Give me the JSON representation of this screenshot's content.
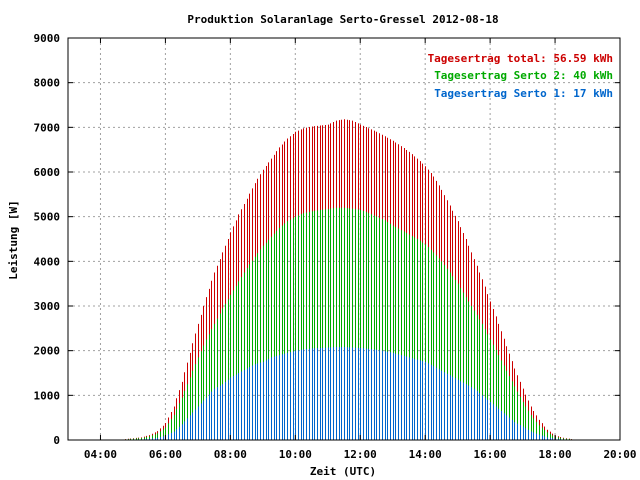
{
  "chart_data": {
    "type": "bar",
    "title": "Produktion Solaranlage Serto-Gressel 2012-08-18",
    "xlabel": "Zeit (UTC)",
    "ylabel": "Leistung [W]",
    "xlim": [
      "03:00",
      "20:00"
    ],
    "ylim": [
      0,
      9000
    ],
    "grid": true,
    "legend_position": "top-right",
    "x_ticks": [
      "04:00",
      "06:00",
      "08:00",
      "10:00",
      "12:00",
      "14:00",
      "16:00",
      "18:00",
      "20:00"
    ],
    "y_ticks": [
      "0",
      "1000",
      "2000",
      "3000",
      "4000",
      "5000",
      "6000",
      "7000",
      "8000",
      "9000"
    ],
    "bar_interval_minutes": 5,
    "legend": [
      {
        "text": "Tagesertrag total: 56.59 kWh",
        "color": "#cc0000"
      },
      {
        "text": "Tagesertrag Serto 2: 40 kWh",
        "color": "#00aa00"
      },
      {
        "text": "Tagesertrag Serto 1: 17 kWh",
        "color": "#0066cc"
      }
    ],
    "series": [
      {
        "color": "#cc0000",
        "points": [
          [
            "04:45",
            20
          ],
          [
            "05:00",
            40
          ],
          [
            "05:15",
            60
          ],
          [
            "05:30",
            110
          ],
          [
            "05:45",
            200
          ],
          [
            "06:00",
            380
          ],
          [
            "06:15",
            750
          ],
          [
            "06:30",
            1300
          ],
          [
            "06:45",
            1950
          ],
          [
            "07:00",
            2600
          ],
          [
            "07:15",
            3200
          ],
          [
            "07:30",
            3750
          ],
          [
            "07:45",
            4200
          ],
          [
            "08:00",
            4650
          ],
          [
            "08:15",
            5050
          ],
          [
            "08:30",
            5400
          ],
          [
            "08:45",
            5750
          ],
          [
            "09:00",
            6050
          ],
          [
            "09:15",
            6300
          ],
          [
            "09:30",
            6550
          ],
          [
            "09:45",
            6750
          ],
          [
            "10:00",
            6900
          ],
          [
            "10:15",
            6980
          ],
          [
            "10:30",
            7020
          ],
          [
            "10:45",
            7040
          ],
          [
            "11:00",
            7060
          ],
          [
            "11:15",
            7150
          ],
          [
            "11:30",
            7180
          ],
          [
            "11:45",
            7150
          ],
          [
            "12:00",
            7060
          ],
          [
            "12:15",
            6980
          ],
          [
            "12:30",
            6900
          ],
          [
            "12:45",
            6800
          ],
          [
            "13:00",
            6700
          ],
          [
            "13:15",
            6580
          ],
          [
            "13:30",
            6450
          ],
          [
            "13:45",
            6300
          ],
          [
            "14:00",
            6130
          ],
          [
            "14:15",
            5900
          ],
          [
            "14:30",
            5600
          ],
          [
            "14:45",
            5250
          ],
          [
            "15:00",
            4900
          ],
          [
            "15:15",
            4500
          ],
          [
            "15:30",
            4050
          ],
          [
            "15:45",
            3600
          ],
          [
            "16:00",
            3100
          ],
          [
            "16:15",
            2600
          ],
          [
            "16:30",
            2100
          ],
          [
            "16:45",
            1600
          ],
          [
            "17:00",
            1150
          ],
          [
            "17:15",
            750
          ],
          [
            "17:30",
            450
          ],
          [
            "17:45",
            230
          ],
          [
            "18:00",
            100
          ],
          [
            "18:15",
            50
          ],
          [
            "18:30",
            20
          ]
        ]
      },
      {
        "color": "#00aa00",
        "points": [
          [
            "04:45",
            15
          ],
          [
            "05:00",
            30
          ],
          [
            "05:15",
            45
          ],
          [
            "05:30",
            80
          ],
          [
            "05:45",
            150
          ],
          [
            "06:00",
            280
          ],
          [
            "06:15",
            560
          ],
          [
            "06:30",
            950
          ],
          [
            "06:45",
            1400
          ],
          [
            "07:00",
            1850
          ],
          [
            "07:15",
            2250
          ],
          [
            "07:30",
            2600
          ],
          [
            "07:45",
            2950
          ],
          [
            "08:00",
            3250
          ],
          [
            "08:15",
            3550
          ],
          [
            "08:30",
            3850
          ],
          [
            "08:45",
            4100
          ],
          [
            "09:00",
            4350
          ],
          [
            "09:15",
            4550
          ],
          [
            "09:30",
            4750
          ],
          [
            "09:45",
            4900
          ],
          [
            "10:00",
            5000
          ],
          [
            "10:15",
            5080
          ],
          [
            "10:30",
            5120
          ],
          [
            "10:45",
            5150
          ],
          [
            "11:00",
            5170
          ],
          [
            "11:15",
            5200
          ],
          [
            "11:30",
            5200
          ],
          [
            "11:45",
            5180
          ],
          [
            "12:00",
            5150
          ],
          [
            "12:15",
            5080
          ],
          [
            "12:30",
            5000
          ],
          [
            "12:45",
            4920
          ],
          [
            "13:00",
            4800
          ],
          [
            "13:15",
            4700
          ],
          [
            "13:30",
            4600
          ],
          [
            "13:45",
            4500
          ],
          [
            "14:00",
            4380
          ],
          [
            "14:15",
            4200
          ],
          [
            "14:30",
            4000
          ],
          [
            "14:45",
            3750
          ],
          [
            "15:00",
            3500
          ],
          [
            "15:15",
            3200
          ],
          [
            "15:30",
            2900
          ],
          [
            "15:45",
            2600
          ],
          [
            "16:00",
            2250
          ],
          [
            "16:15",
            1900
          ],
          [
            "16:30",
            1550
          ],
          [
            "16:45",
            1200
          ],
          [
            "17:00",
            850
          ],
          [
            "17:15",
            560
          ],
          [
            "17:30",
            330
          ],
          [
            "17:45",
            170
          ],
          [
            "18:00",
            70
          ],
          [
            "18:15",
            35
          ],
          [
            "18:30",
            15
          ]
        ]
      },
      {
        "color": "#0066cc",
        "points": [
          [
            "04:45",
            5
          ],
          [
            "05:00",
            10
          ],
          [
            "05:15",
            15
          ],
          [
            "05:30",
            30
          ],
          [
            "05:45",
            50
          ],
          [
            "06:00",
            100
          ],
          [
            "06:15",
            190
          ],
          [
            "06:30",
            350
          ],
          [
            "06:45",
            550
          ],
          [
            "07:00",
            750
          ],
          [
            "07:15",
            950
          ],
          [
            "07:30",
            1150
          ],
          [
            "07:45",
            1250
          ],
          [
            "08:00",
            1400
          ],
          [
            "08:15",
            1500
          ],
          [
            "08:30",
            1600
          ],
          [
            "08:45",
            1700
          ],
          [
            "09:00",
            1750
          ],
          [
            "09:15",
            1850
          ],
          [
            "09:30",
            1900
          ],
          [
            "09:45",
            1950
          ],
          [
            "10:00",
            2000
          ],
          [
            "10:15",
            2030
          ],
          [
            "10:30",
            2050
          ],
          [
            "10:45",
            2060
          ],
          [
            "11:00",
            2070
          ],
          [
            "11:15",
            2080
          ],
          [
            "11:30",
            2080
          ],
          [
            "11:45",
            2070
          ],
          [
            "12:00",
            2060
          ],
          [
            "12:15",
            2040
          ],
          [
            "12:30",
            2020
          ],
          [
            "12:45",
            1990
          ],
          [
            "13:00",
            1950
          ],
          [
            "13:15",
            1900
          ],
          [
            "13:30",
            1850
          ],
          [
            "13:45",
            1800
          ],
          [
            "14:00",
            1750
          ],
          [
            "14:15",
            1650
          ],
          [
            "14:30",
            1550
          ],
          [
            "14:45",
            1450
          ],
          [
            "15:00",
            1350
          ],
          [
            "15:15",
            1250
          ],
          [
            "15:30",
            1150
          ],
          [
            "15:45",
            1000
          ],
          [
            "16:00",
            850
          ],
          [
            "16:15",
            700
          ],
          [
            "16:30",
            550
          ],
          [
            "16:45",
            400
          ],
          [
            "17:00",
            300
          ],
          [
            "17:15",
            190
          ],
          [
            "17:30",
            120
          ],
          [
            "17:45",
            60
          ],
          [
            "18:00",
            30
          ],
          [
            "18:15",
            15
          ],
          [
            "18:30",
            5
          ]
        ]
      }
    ]
  }
}
